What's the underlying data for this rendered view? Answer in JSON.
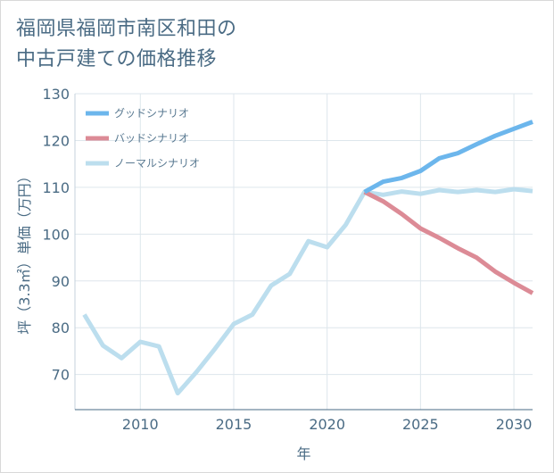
{
  "title": {
    "line1": "福岡県福岡市南区和田の",
    "line2": "中古戸建ての価格推移"
  },
  "chart_data": {
    "type": "line",
    "xlabel": "年",
    "ylabel": "坪（3.3㎡）単価（万円）",
    "xlim": [
      2006.5,
      2031
    ],
    "ylim": [
      62.5,
      130
    ],
    "x_ticks": [
      2010,
      2015,
      2020,
      2025,
      2030
    ],
    "y_ticks": [
      70,
      80,
      90,
      100,
      110,
      120,
      130
    ],
    "grid": true,
    "legend_position": "top-left",
    "series": [
      {
        "name": "グッドシナリオ",
        "color": "#6cb6ec",
        "x": [
          2022,
          2023,
          2024,
          2025,
          2026,
          2027,
          2028,
          2029,
          2030,
          2031
        ],
        "y": [
          109,
          111.2,
          112,
          113.5,
          116.2,
          117.3,
          119.2,
          121,
          122.5,
          124
        ]
      },
      {
        "name": "バッドシナリオ",
        "color": "#dc8b96",
        "x": [
          2022,
          2023,
          2024,
          2025,
          2026,
          2027,
          2028,
          2029,
          2030,
          2031
        ],
        "y": [
          109,
          107,
          104.3,
          101.2,
          99.2,
          97,
          95,
          92,
          89.6,
          87.4
        ]
      },
      {
        "name": "ノーマルシナリオ",
        "color": "#bcdeee",
        "x": [
          2007,
          2008,
          2009,
          2010,
          2011,
          2012,
          2013,
          2014,
          2015,
          2016,
          2017,
          2018,
          2019,
          2020,
          2021,
          2022,
          2023,
          2024,
          2025,
          2026,
          2027,
          2028,
          2029,
          2030,
          2031
        ],
        "y": [
          82.8,
          76.2,
          73.5,
          77,
          76,
          66,
          70.5,
          75.5,
          80.8,
          82.8,
          89,
          91.5,
          98.5,
          97.2,
          102,
          109,
          108.4,
          109.1,
          108.6,
          109.4,
          109,
          109.4,
          109,
          109.6,
          109.2
        ]
      }
    ]
  }
}
